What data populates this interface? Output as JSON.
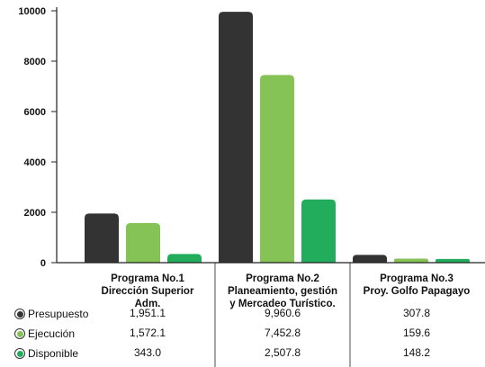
{
  "chart_data": {
    "type": "bar",
    "y_ticks": [
      "0",
      "2000",
      "4000",
      "6000",
      "8000",
      "10000"
    ],
    "ylim": [
      0,
      10000
    ],
    "categories": [
      [
        "Programa No.1",
        "Dirección Superior",
        "Adm."
      ],
      [
        "Programa No.2",
        "Planeamiento, gestión",
        "y Mercadeo Turístico."
      ],
      [
        "Programa No.3",
        "Proy. Golfo Papagayo"
      ]
    ],
    "series": [
      {
        "name": "Presupuesto",
        "color": "#333333",
        "values": [
          1951.1,
          9960.6,
          307.8
        ],
        "labels": [
          "1,951.1",
          "9,960.6",
          "307.8"
        ]
      },
      {
        "name": "Ejecución",
        "color": "#86c356",
        "values": [
          1572.1,
          7452.8,
          159.6
        ],
        "labels": [
          "1,572.1",
          "7,452.8",
          "159.6"
        ]
      },
      {
        "name": "Disponible",
        "color": "#22ad5c",
        "values": [
          343.0,
          2507.8,
          148.2
        ],
        "labels": [
          "343.0",
          "2,507.8",
          "148.2"
        ]
      }
    ],
    "grid": false,
    "legend": "table-bottom-left"
  }
}
